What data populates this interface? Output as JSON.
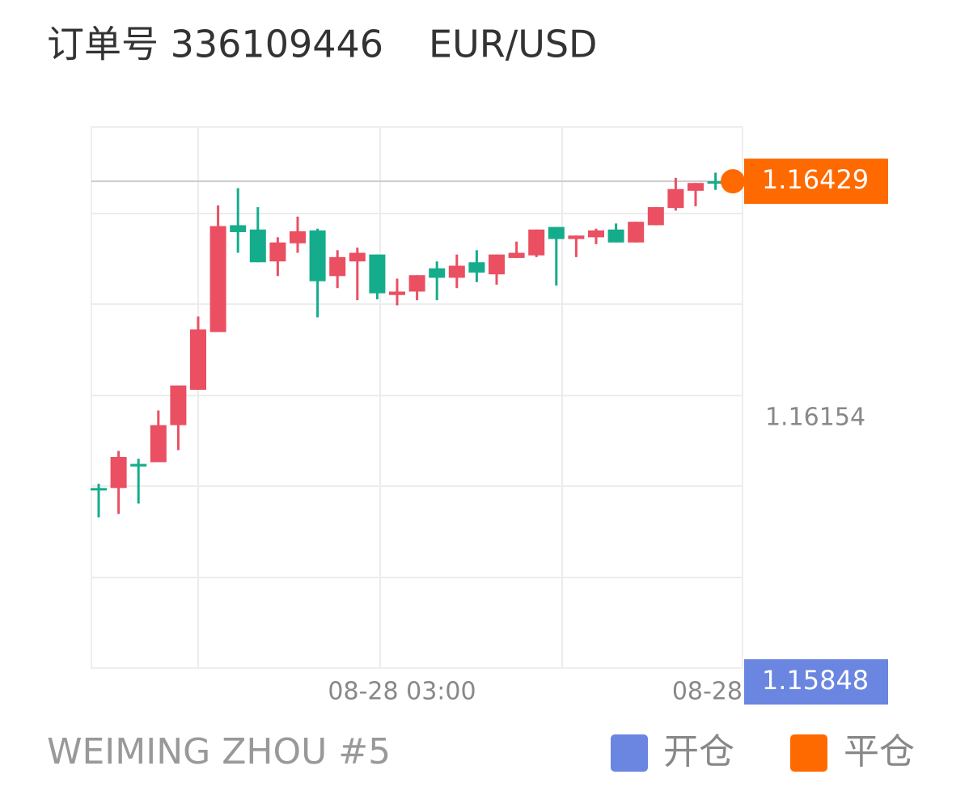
{
  "header": {
    "order_label": "订单号 336109446",
    "symbol": "EUR/USD"
  },
  "chart_data": {
    "type": "candlestick",
    "categories": [
      null,
      null,
      null,
      null,
      null,
      null,
      null,
      null,
      null,
      null,
      null,
      null,
      null,
      null,
      null,
      "08-28 03:00",
      null,
      null,
      null,
      null,
      null,
      null,
      null,
      null,
      null,
      null,
      null,
      null,
      null,
      null,
      null,
      "08-28"
    ],
    "open": [
      1.16073,
      1.16073,
      1.16101,
      1.16103,
      1.16146,
      1.16187,
      1.16254,
      1.16378,
      1.16373,
      1.16336,
      1.16357,
      1.16372,
      1.16319,
      1.16336,
      1.16344,
      1.16297,
      1.16301,
      1.16328,
      1.16317,
      1.16335,
      1.16321,
      1.1634,
      1.16343,
      1.16376,
      1.16362,
      1.16364,
      1.16373,
      1.16358,
      1.16378,
      1.16398,
      1.16418,
      1.16429
    ],
    "high": [
      1.16078,
      1.16116,
      1.16107,
      1.16163,
      1.16192,
      1.16272,
      1.16401,
      1.16421,
      1.16399,
      1.16364,
      1.16388,
      1.16374,
      1.16349,
      1.16352,
      1.16344,
      1.16316,
      1.1632,
      1.16336,
      1.16344,
      1.16349,
      1.16344,
      1.16359,
      1.16373,
      1.16376,
      1.16366,
      1.16374,
      1.1638,
      1.16382,
      1.16399,
      1.16433,
      1.16427,
      1.16439
    ],
    "low": [
      1.16039,
      1.16043,
      1.16055,
      1.16103,
      1.16117,
      1.16187,
      1.16254,
      1.16346,
      1.16335,
      1.16319,
      1.16346,
      1.16271,
      1.16305,
      1.16291,
      1.16292,
      1.16285,
      1.16291,
      1.16291,
      1.16305,
      1.16312,
      1.16309,
      1.1634,
      1.16341,
      1.16308,
      1.16341,
      1.16356,
      1.16358,
      1.16358,
      1.16378,
      1.16395,
      1.164,
      1.16419
    ],
    "close": [
      1.16071,
      1.16109,
      1.16098,
      1.16146,
      1.16192,
      1.16257,
      1.16377,
      1.1637,
      1.16335,
      1.16358,
      1.16371,
      1.16313,
      1.16341,
      1.16346,
      1.16299,
      1.16301,
      1.1632,
      1.16317,
      1.16331,
      1.16323,
      1.16344,
      1.16346,
      1.16373,
      1.16362,
      1.16366,
      1.16372,
      1.16358,
      1.16382,
      1.16399,
      1.1642,
      1.16427,
      1.16428
    ],
    "up_color": "#ea4f62",
    "down_color": "#15ac8c",
    "ylim": [
      1.15864,
      1.16492
    ],
    "yticks": [
      1.16154
    ],
    "open_price": {
      "label": "开仓",
      "value": 1.15848,
      "color": "#6a86e0"
    },
    "close_price": {
      "label": "平仓",
      "value": 1.16429,
      "color": "#ff6a00"
    }
  },
  "footer": {
    "account": "WEIMING ZHOU #5"
  }
}
